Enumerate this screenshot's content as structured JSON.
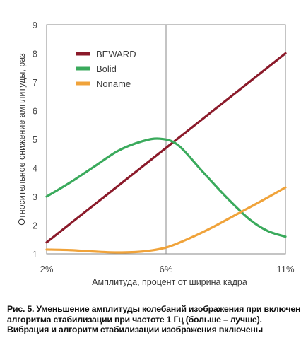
{
  "chart_data": {
    "type": "line",
    "x_ticks": [
      "2%",
      "6%",
      "11%"
    ],
    "xlim": [
      0,
      2
    ],
    "ylim": [
      1,
      9
    ],
    "y_ticks": [
      1,
      2,
      3,
      4,
      5,
      6,
      7,
      8,
      9
    ],
    "xlabel": "Амплитуда, процент от ширина кадра",
    "ylabel": "Относительное снижение амплитуды, раз",
    "grid": "vertical line at 6%",
    "legend_position": "top-left",
    "series": [
      {
        "name": "BEWARD",
        "color": "#8b1a2a",
        "x": [
          0,
          2
        ],
        "y": [
          1.4,
          8.0
        ]
      },
      {
        "name": "Bolid",
        "color": "#3aaa5c",
        "x": [
          0,
          0.2,
          0.4,
          0.6,
          0.8,
          0.95,
          1.1,
          1.3,
          1.5,
          1.7,
          1.85,
          2.0
        ],
        "y": [
          3.0,
          3.5,
          4.05,
          4.6,
          4.93,
          5.02,
          4.8,
          3.9,
          3.0,
          2.2,
          1.8,
          1.6
        ]
      },
      {
        "name": "Noname",
        "color": "#f0a33a",
        "x": [
          0,
          0.2,
          0.4,
          0.6,
          0.8,
          1.0,
          1.2,
          1.4,
          1.6,
          1.8,
          2.0
        ],
        "y": [
          1.15,
          1.13,
          1.08,
          1.05,
          1.08,
          1.22,
          1.55,
          1.95,
          2.4,
          2.85,
          3.32
        ]
      }
    ]
  },
  "caption": {
    "line1": "Рис. 5. Уменьшение амплитуды колебаний изображения при включении",
    "line2": "алгоритма стабилизации при частоте 1 Гц (больше – лучше).",
    "line3": "Вибрация и алгоритм стабилизации изображения включены"
  }
}
